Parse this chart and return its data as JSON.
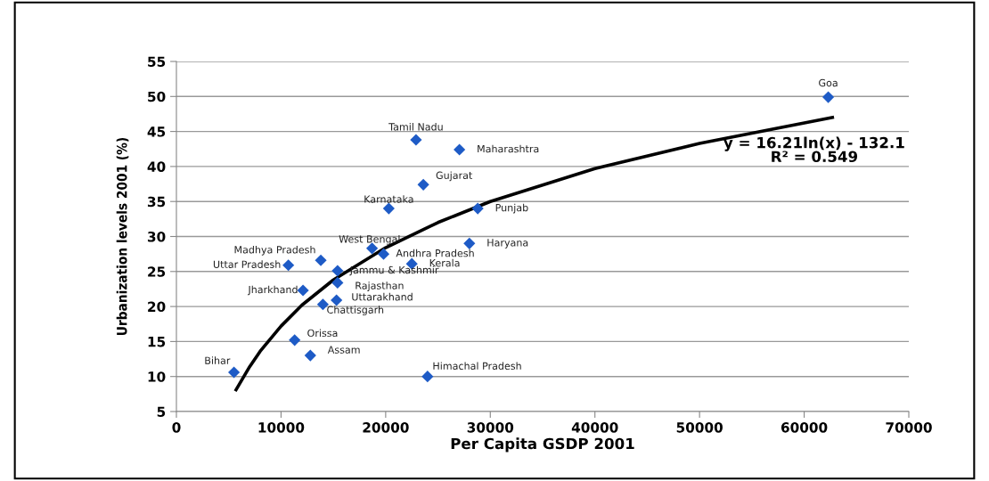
{
  "chart_data": {
    "type": "scatter",
    "xlabel": "Per Capita GSDP 2001",
    "ylabel": "Urbanization levels 2001 (%)",
    "xlim": [
      0,
      70000
    ],
    "xticks": [
      0,
      10000,
      20000,
      30000,
      40000,
      50000,
      60000,
      70000
    ],
    "ylim": [
      5,
      55
    ],
    "yticks": [
      5,
      10,
      15,
      20,
      25,
      30,
      35,
      40,
      45,
      50,
      55
    ],
    "grid": "y",
    "series": [
      {
        "marker": "diamond",
        "color": "#1e5bc6",
        "x": [
          62300,
          22900,
          27050,
          23600,
          20300,
          28800,
          28000,
          18700,
          19800,
          13800,
          10700,
          22500,
          15400,
          15400,
          12100,
          15300,
          14000,
          11300,
          12800,
          5500,
          24000
        ],
        "values": [
          49.9,
          43.8,
          42.4,
          37.4,
          34.0,
          34.0,
          29.0,
          28.3,
          27.5,
          26.6,
          25.9,
          26.1,
          25.1,
          23.4,
          22.3,
          20.9,
          20.3,
          15.2,
          13.0,
          10.6,
          10.0
        ]
      },
      {
        "type": "line",
        "marker": "none",
        "color": "#000000",
        "x": [
          5700,
          7000,
          8000,
          10000,
          12000,
          15000,
          20000,
          25000,
          30000,
          40000,
          50000,
          62700
        ],
        "values": [
          8.1,
          11.4,
          13.6,
          17.2,
          20.2,
          23.8,
          28.4,
          32.0,
          35.0,
          39.7,
          43.3,
          47.0
        ]
      }
    ],
    "annotations": [
      {
        "text": "Goa",
        "x": 62300,
        "y": 49.9
      },
      {
        "text": "Tamil Nadu",
        "x": 22900,
        "y": 43.8
      },
      {
        "text": "Maharashtra",
        "x": 27050,
        "y": 42.4
      },
      {
        "text": "Gujarat",
        "x": 23600,
        "y": 37.4
      },
      {
        "text": "Karnataka",
        "x": 20300,
        "y": 34.0
      },
      {
        "text": "Punjab",
        "x": 28800,
        "y": 34.0
      },
      {
        "text": "Haryana",
        "x": 28000,
        "y": 29.0
      },
      {
        "text": "West Bengal",
        "x": 18700,
        "y": 28.3
      },
      {
        "text": "Andhra Pradesh",
        "x": 19800,
        "y": 27.5
      },
      {
        "text": "Madhya Pradesh",
        "x": 13800,
        "y": 26.6
      },
      {
        "text": "Uttar Pradesh",
        "x": 10700,
        "y": 25.9
      },
      {
        "text": "Kerala",
        "x": 22500,
        "y": 26.1
      },
      {
        "text": "Jammu & Kashmir",
        "x": 15400,
        "y": 25.1
      },
      {
        "text": "Rajasthan",
        "x": 15400,
        "y": 23.4
      },
      {
        "text": "Jharkhand",
        "x": 12100,
        "y": 22.3
      },
      {
        "text": "Uttarakhand",
        "x": 15300,
        "y": 20.9
      },
      {
        "text": "Chattisgarh",
        "x": 14000,
        "y": 20.3
      },
      {
        "text": "Orissa",
        "x": 11300,
        "y": 15.2
      },
      {
        "text": "Assam",
        "x": 12800,
        "y": 13.0
      },
      {
        "text": "Bihar",
        "x": 5500,
        "y": 10.6
      },
      {
        "text": "Himachal Pradesh",
        "x": 24000,
        "y": 10.0
      },
      "y = 16.21ln(x) - 132.1\nR² = 0.549"
    ]
  }
}
